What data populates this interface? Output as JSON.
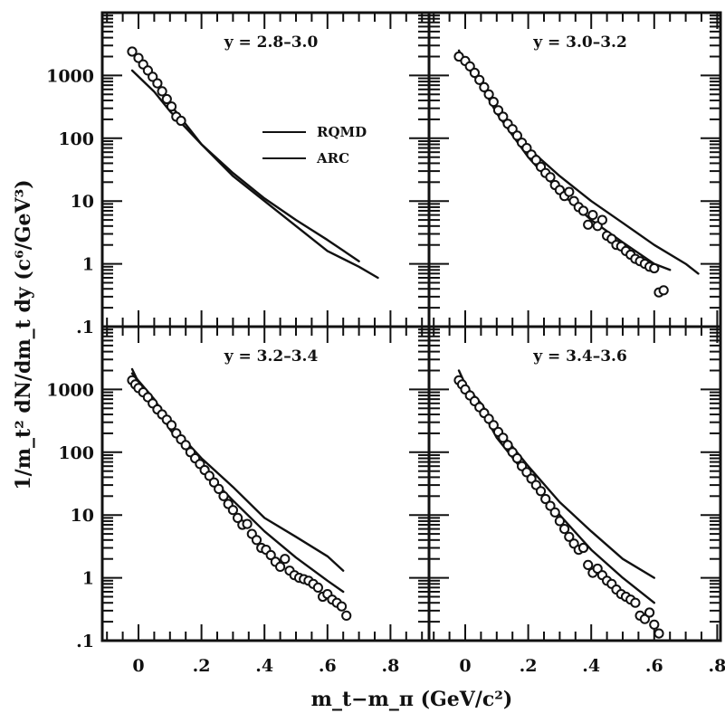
{
  "chart_data": {
    "type": "scatter",
    "y_scale": "log",
    "xlabel": "m_t−m_π (GeV/c²)",
    "ylabel": "1/m_t² dN/dm_t dy (c⁶/GeV³)",
    "x_ticks": [
      "0",
      ".2",
      ".4",
      ".6",
      ".8"
    ],
    "y_ticks": [
      "1000",
      "100",
      "10",
      "1",
      ".1"
    ],
    "xlim": [
      -0.1,
      0.9
    ],
    "ylim": [
      0.1,
      7000
    ],
    "legend": {
      "placement": "top-left panel, center",
      "entries": [
        {
          "label": "RQMD",
          "style": "solid"
        },
        {
          "label": "ARC",
          "style": "solid"
        }
      ]
    },
    "panels": [
      {
        "label": "y = 2.8–3.0",
        "points": [
          [
            -0.02,
            2400
          ],
          [
            0.0,
            1900
          ],
          [
            0.015,
            1500
          ],
          [
            0.03,
            1200
          ],
          [
            0.045,
            950
          ],
          [
            0.06,
            750
          ],
          [
            0.075,
            560
          ],
          [
            0.09,
            420
          ],
          [
            0.105,
            320
          ],
          [
            0.12,
            220
          ],
          [
            0.135,
            190
          ]
        ],
        "rqmd": [
          [
            -0.02,
            2500
          ],
          [
            0.0,
            1700
          ],
          [
            0.05,
            900
          ],
          [
            0.1,
            350
          ],
          [
            0.2,
            80
          ],
          [
            0.3,
            25
          ],
          [
            0.4,
            10
          ],
          [
            0.5,
            4
          ],
          [
            0.6,
            1.6
          ],
          [
            0.7,
            0.9
          ],
          [
            0.76,
            0.6
          ]
        ],
        "arc": [
          [
            -0.02,
            1200
          ],
          [
            0.05,
            550
          ],
          [
            0.1,
            270
          ],
          [
            0.2,
            80
          ],
          [
            0.3,
            28
          ],
          [
            0.4,
            11
          ],
          [
            0.5,
            5
          ],
          [
            0.6,
            2.4
          ],
          [
            0.7,
            1.1
          ]
        ]
      },
      {
        "label": "y = 3.0–3.2",
        "points": [
          [
            -0.02,
            2000
          ],
          [
            0.0,
            1700
          ],
          [
            0.015,
            1400
          ],
          [
            0.03,
            1100
          ],
          [
            0.045,
            850
          ],
          [
            0.06,
            650
          ],
          [
            0.075,
            500
          ],
          [
            0.09,
            380
          ],
          [
            0.105,
            280
          ],
          [
            0.12,
            220
          ],
          [
            0.135,
            170
          ],
          [
            0.15,
            140
          ],
          [
            0.165,
            110
          ],
          [
            0.18,
            85
          ],
          [
            0.195,
            70
          ],
          [
            0.21,
            55
          ],
          [
            0.225,
            45
          ],
          [
            0.24,
            35
          ],
          [
            0.255,
            28
          ],
          [
            0.27,
            24
          ],
          [
            0.285,
            18
          ],
          [
            0.3,
            15
          ],
          [
            0.315,
            12
          ],
          [
            0.33,
            14
          ],
          [
            0.345,
            10
          ],
          [
            0.36,
            8
          ],
          [
            0.375,
            7
          ],
          [
            0.39,
            4.2
          ],
          [
            0.405,
            6
          ],
          [
            0.42,
            4
          ],
          [
            0.435,
            5
          ],
          [
            0.45,
            2.8
          ],
          [
            0.465,
            2.5
          ],
          [
            0.48,
            2
          ],
          [
            0.495,
            1.9
          ],
          [
            0.51,
            1.6
          ],
          [
            0.525,
            1.4
          ],
          [
            0.54,
            1.2
          ],
          [
            0.555,
            1.1
          ],
          [
            0.57,
            1
          ],
          [
            0.585,
            0.9
          ],
          [
            0.6,
            0.85
          ],
          [
            0.615,
            0.35
          ],
          [
            0.63,
            0.38
          ]
        ],
        "rqmd": [
          [
            -0.02,
            2500
          ],
          [
            0.0,
            1500
          ],
          [
            0.05,
            700
          ],
          [
            0.1,
            250
          ],
          [
            0.2,
            50
          ],
          [
            0.3,
            14
          ],
          [
            0.4,
            5
          ],
          [
            0.5,
            2.2
          ],
          [
            0.6,
            1
          ],
          [
            0.65,
            0.8
          ]
        ],
        "arc": [
          [
            -0.02,
            2200
          ],
          [
            0.05,
            900
          ],
          [
            0.1,
            300
          ],
          [
            0.2,
            70
          ],
          [
            0.3,
            25
          ],
          [
            0.4,
            10
          ],
          [
            0.5,
            4.5
          ],
          [
            0.6,
            2
          ],
          [
            0.7,
            1
          ],
          [
            0.74,
            0.7
          ]
        ]
      },
      {
        "label": "y = 3.2–3.4",
        "points": [
          [
            -0.02,
            1400
          ],
          [
            -0.01,
            1200
          ],
          [
            0.0,
            1050
          ],
          [
            0.015,
            900
          ],
          [
            0.03,
            750
          ],
          [
            0.045,
            600
          ],
          [
            0.06,
            480
          ],
          [
            0.075,
            400
          ],
          [
            0.09,
            330
          ],
          [
            0.105,
            270
          ],
          [
            0.12,
            200
          ],
          [
            0.135,
            160
          ],
          [
            0.15,
            130
          ],
          [
            0.165,
            100
          ],
          [
            0.18,
            80
          ],
          [
            0.195,
            65
          ],
          [
            0.21,
            52
          ],
          [
            0.225,
            42
          ],
          [
            0.24,
            33
          ],
          [
            0.255,
            26
          ],
          [
            0.27,
            20
          ],
          [
            0.285,
            15
          ],
          [
            0.3,
            12
          ],
          [
            0.315,
            9
          ],
          [
            0.33,
            7
          ],
          [
            0.345,
            7.2
          ],
          [
            0.36,
            5
          ],
          [
            0.375,
            4
          ],
          [
            0.39,
            3
          ],
          [
            0.405,
            2.8
          ],
          [
            0.42,
            2.3
          ],
          [
            0.435,
            1.8
          ],
          [
            0.45,
            1.5
          ],
          [
            0.465,
            2
          ],
          [
            0.48,
            1.3
          ],
          [
            0.495,
            1.1
          ],
          [
            0.51,
            1
          ],
          [
            0.525,
            0.95
          ],
          [
            0.54,
            0.9
          ],
          [
            0.555,
            0.8
          ],
          [
            0.57,
            0.7
          ],
          [
            0.585,
            0.5
          ],
          [
            0.6,
            0.55
          ],
          [
            0.615,
            0.45
          ],
          [
            0.63,
            0.4
          ],
          [
            0.645,
            0.35
          ],
          [
            0.66,
            0.25
          ]
        ],
        "rqmd": [
          [
            -0.02,
            2100
          ],
          [
            0.0,
            1300
          ],
          [
            0.05,
            600
          ],
          [
            0.1,
            230
          ],
          [
            0.2,
            55
          ],
          [
            0.3,
            17
          ],
          [
            0.4,
            5.5
          ],
          [
            0.5,
            2.1
          ],
          [
            0.6,
            0.9
          ],
          [
            0.65,
            0.6
          ]
        ],
        "arc": [
          [
            -0.02,
            1800
          ],
          [
            0.05,
            700
          ],
          [
            0.1,
            280
          ],
          [
            0.2,
            80
          ],
          [
            0.3,
            28
          ],
          [
            0.4,
            9
          ],
          [
            0.5,
            4.5
          ],
          [
            0.6,
            2.2
          ],
          [
            0.65,
            1.3
          ]
        ]
      },
      {
        "label": "y = 3.4–3.6",
        "points": [
          [
            -0.02,
            1400
          ],
          [
            -0.01,
            1200
          ],
          [
            0.0,
            1000
          ],
          [
            0.015,
            800
          ],
          [
            0.03,
            650
          ],
          [
            0.045,
            520
          ],
          [
            0.06,
            420
          ],
          [
            0.075,
            340
          ],
          [
            0.09,
            270
          ],
          [
            0.105,
            210
          ],
          [
            0.12,
            170
          ],
          [
            0.135,
            130
          ],
          [
            0.15,
            100
          ],
          [
            0.165,
            80
          ],
          [
            0.18,
            60
          ],
          [
            0.195,
            48
          ],
          [
            0.21,
            38
          ],
          [
            0.225,
            30
          ],
          [
            0.24,
            24
          ],
          [
            0.255,
            18
          ],
          [
            0.27,
            14
          ],
          [
            0.285,
            11
          ],
          [
            0.3,
            8
          ],
          [
            0.315,
            6
          ],
          [
            0.33,
            4.5
          ],
          [
            0.345,
            3.5
          ],
          [
            0.36,
            2.8
          ],
          [
            0.375,
            3
          ],
          [
            0.39,
            1.6
          ],
          [
            0.405,
            1.2
          ],
          [
            0.42,
            1.4
          ],
          [
            0.435,
            1.1
          ],
          [
            0.45,
            0.9
          ],
          [
            0.465,
            0.8
          ],
          [
            0.48,
            0.65
          ],
          [
            0.495,
            0.55
          ],
          [
            0.51,
            0.5
          ],
          [
            0.525,
            0.45
          ],
          [
            0.54,
            0.4
          ],
          [
            0.555,
            0.25
          ],
          [
            0.57,
            0.22
          ],
          [
            0.585,
            0.28
          ],
          [
            0.6,
            0.18
          ],
          [
            0.615,
            0.13
          ]
        ],
        "rqmd": [
          [
            -0.02,
            2000
          ],
          [
            0.0,
            1200
          ],
          [
            0.05,
            500
          ],
          [
            0.1,
            170
          ],
          [
            0.2,
            40
          ],
          [
            0.3,
            10
          ],
          [
            0.4,
            2.8
          ],
          [
            0.5,
            1
          ],
          [
            0.6,
            0.4
          ]
        ],
        "arc": [
          [
            -0.02,
            1500
          ],
          [
            0.05,
            600
          ],
          [
            0.1,
            250
          ],
          [
            0.2,
            60
          ],
          [
            0.3,
            16
          ],
          [
            0.4,
            5.5
          ],
          [
            0.5,
            2
          ],
          [
            0.6,
            1
          ]
        ]
      }
    ]
  }
}
